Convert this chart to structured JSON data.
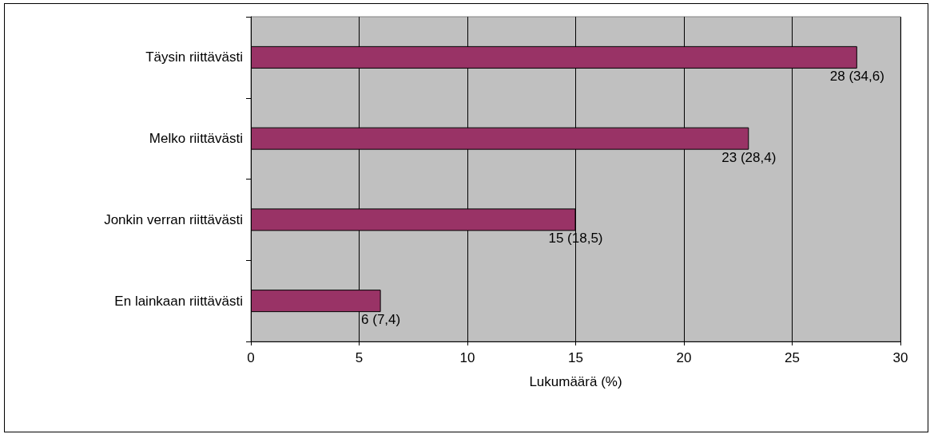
{
  "chart_data": {
    "type": "bar",
    "orientation": "horizontal",
    "xlabel": "Lukumäärä (%)",
    "categories": [
      "Täysin riittävästi",
      "Melko riittävästi",
      "Jonkin verran riittävästi",
      "En lainkaan riittävästi"
    ],
    "values": [
      28,
      23,
      15,
      6
    ],
    "value_labels": [
      "28 (34,6)",
      "23 (28,4)",
      "15 (18,5)",
      "6 (7,4)"
    ],
    "color": "#993366",
    "xlim": [
      0,
      30
    ],
    "xticks": [
      0,
      5,
      10,
      15,
      20,
      25,
      30
    ],
    "grid": "x"
  }
}
